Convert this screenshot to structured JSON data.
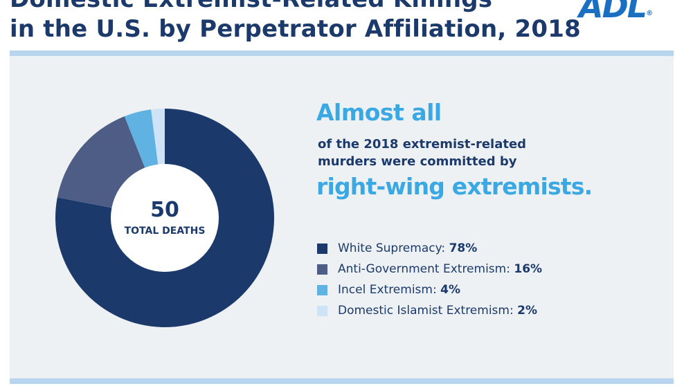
{
  "header": {
    "title_line1": "Domestic Extremist-Related Killings",
    "title_line2": "in the U.S. by Perpetrator Affiliation, 2018",
    "logo_text": "ADL",
    "logo_mark": "®"
  },
  "callout": {
    "headline1": "Almost all",
    "text_line1": "of the 2018 extremist-related",
    "text_line2": "murders were committed by",
    "headline2": "right-wing extremists."
  },
  "colors": {
    "white_supremacy": "#1b3a6b",
    "anti_government": "#4d5d86",
    "incel": "#5fb2e2",
    "islamist": "#cfe3f6",
    "accent": "#3aa9e3",
    "title": "#1b3a6b"
  },
  "chart_data": {
    "type": "pie",
    "style": "donut",
    "center_value": "50",
    "center_label": "TOTAL DEATHS",
    "unit": "%",
    "categories": [
      "White Supremacy",
      "Anti-Government Extremism",
      "Incel Extremism",
      "Domestic Islamist Extremism"
    ],
    "values": [
      78,
      16,
      4,
      2
    ],
    "colors": [
      "#1b3a6b",
      "#4d5d86",
      "#5fb2e2",
      "#cfe3f6"
    ],
    "legend_position": "right",
    "legend": [
      {
        "label": "White Supremacy:",
        "value": "78%"
      },
      {
        "label": "Anti-Government Extremism:",
        "value": "16%"
      },
      {
        "label": "Incel Extremism:",
        "value": "4%"
      },
      {
        "label": "Domestic Islamist Extremism:",
        "value": "2%"
      }
    ]
  }
}
